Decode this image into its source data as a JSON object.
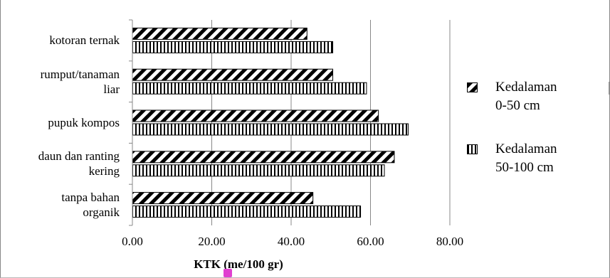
{
  "chart_data": {
    "type": "bar",
    "orientation": "horizontal",
    "categories": [
      "kotoran ternak",
      "rumput/tanaman liar",
      "pupuk kompos",
      "daun dan ranting kering",
      "tanpa bahan organik"
    ],
    "category_lines": [
      [
        "kotoran ternak"
      ],
      [
        "rumput/tanaman",
        "liar"
      ],
      [
        "pupuk kompos"
      ],
      [
        "daun dan ranting",
        "kering"
      ],
      [
        "tanpa bahan",
        "organik"
      ]
    ],
    "series": [
      {
        "name": "Kedalaman 0-50 cm",
        "legend_lines": [
          "Kedalaman",
          "0-50 cm"
        ],
        "pattern": "diagonal",
        "values": [
          44.0,
          50.5,
          62.0,
          66.0,
          45.5
        ]
      },
      {
        "name": "Kedalaman 50-100 cm",
        "legend_lines": [
          "Kedalaman",
          "50-100 cm"
        ],
        "pattern": "vertical",
        "values": [
          50.5,
          59.0,
          69.5,
          63.5,
          57.5
        ]
      }
    ],
    "xlabel": "KTK (me/100 gr)",
    "ylabel": "",
    "xlim": [
      0,
      80
    ],
    "xticks": [
      "0.00",
      "20.00",
      "40.00",
      "60.00",
      "80.00"
    ],
    "grid": "vertical",
    "legend_position": "right"
  }
}
